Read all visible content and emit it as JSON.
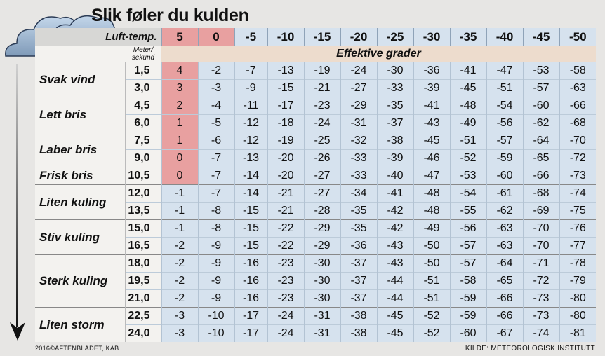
{
  "title": "Slik føler du kulden",
  "header": {
    "air_temp_label": "Luft-temp.",
    "speed_label_line1": "Meter/",
    "speed_label_line2": "sekund",
    "effective_label": "Effektive grader",
    "temperatures": [
      "5",
      "0",
      "-5",
      "-10",
      "-15",
      "-20",
      "-25",
      "-30",
      "-35",
      "-40",
      "-45",
      "-50"
    ]
  },
  "groups": [
    {
      "name": "Svak vind",
      "rows": [
        {
          "speed": "1,5",
          "values": [
            "4",
            "-2",
            "-7",
            "-13",
            "-19",
            "-24",
            "-30",
            "-36",
            "-41",
            "-47",
            "-53",
            "-58"
          ]
        },
        {
          "speed": "3,0",
          "values": [
            "3",
            "-3",
            "-9",
            "-15",
            "-21",
            "-27",
            "-33",
            "-39",
            "-45",
            "-51",
            "-57",
            "-63"
          ]
        }
      ]
    },
    {
      "name": "Lett bris",
      "rows": [
        {
          "speed": "4,5",
          "values": [
            "2",
            "-4",
            "-11",
            "-17",
            "-23",
            "-29",
            "-35",
            "-41",
            "-48",
            "-54",
            "-60",
            "-66"
          ]
        },
        {
          "speed": "6,0",
          "values": [
            "1",
            "-5",
            "-12",
            "-18",
            "-24",
            "-31",
            "-37",
            "-43",
            "-49",
            "-56",
            "-62",
            "-68"
          ]
        }
      ]
    },
    {
      "name": "Laber bris",
      "rows": [
        {
          "speed": "7,5",
          "values": [
            "1",
            "-6",
            "-12",
            "-19",
            "-25",
            "-32",
            "-38",
            "-45",
            "-51",
            "-57",
            "-64",
            "-70"
          ]
        },
        {
          "speed": "9,0",
          "values": [
            "0",
            "-7",
            "-13",
            "-20",
            "-26",
            "-33",
            "-39",
            "-46",
            "-52",
            "-59",
            "-65",
            "-72"
          ]
        }
      ]
    },
    {
      "name": "Frisk bris",
      "rows": [
        {
          "speed": "10,5",
          "values": [
            "0",
            "-7",
            "-14",
            "-20",
            "-27",
            "-33",
            "-40",
            "-47",
            "-53",
            "-60",
            "-66",
            "-73"
          ]
        }
      ]
    },
    {
      "name": "Liten kuling",
      "rows": [
        {
          "speed": "12,0",
          "values": [
            "-1",
            "-7",
            "-14",
            "-21",
            "-27",
            "-34",
            "-41",
            "-48",
            "-54",
            "-61",
            "-68",
            "-74"
          ]
        },
        {
          "speed": "13,5",
          "values": [
            "-1",
            "-8",
            "-15",
            "-21",
            "-28",
            "-35",
            "-42",
            "-48",
            "-55",
            "-62",
            "-69",
            "-75"
          ]
        }
      ]
    },
    {
      "name": "Stiv kuling",
      "rows": [
        {
          "speed": "15,0",
          "values": [
            "-1",
            "-8",
            "-15",
            "-22",
            "-29",
            "-35",
            "-42",
            "-49",
            "-56",
            "-63",
            "-70",
            "-76"
          ]
        },
        {
          "speed": "16,5",
          "values": [
            "-2",
            "-9",
            "-15",
            "-22",
            "-29",
            "-36",
            "-43",
            "-50",
            "-57",
            "-63",
            "-70",
            "-77"
          ]
        }
      ]
    },
    {
      "name": "Sterk kuling",
      "rows": [
        {
          "speed": "18,0",
          "values": [
            "-2",
            "-9",
            "-16",
            "-23",
            "-30",
            "-37",
            "-43",
            "-50",
            "-57",
            "-64",
            "-71",
            "-78"
          ]
        },
        {
          "speed": "19,5",
          "values": [
            "-2",
            "-9",
            "-16",
            "-23",
            "-30",
            "-37",
            "-44",
            "-51",
            "-58",
            "-65",
            "-72",
            "-79"
          ]
        },
        {
          "speed": "21,0",
          "values": [
            "-2",
            "-9",
            "-16",
            "-23",
            "-30",
            "-37",
            "-44",
            "-51",
            "-59",
            "-66",
            "-73",
            "-80"
          ]
        }
      ]
    },
    {
      "name": "Liten storm",
      "rows": [
        {
          "speed": "22,5",
          "values": [
            "-3",
            "-10",
            "-17",
            "-24",
            "-31",
            "-38",
            "-45",
            "-52",
            "-59",
            "-66",
            "-73",
            "-80"
          ]
        },
        {
          "speed": "24,0",
          "values": [
            "-3",
            "-10",
            "-17",
            "-24",
            "-31",
            "-38",
            "-45",
            "-52",
            "-60",
            "-67",
            "-74",
            "-81"
          ]
        }
      ]
    }
  ],
  "warm_marking": "cells above or equal to 0 in the 5° column are highlighted red",
  "colors": {
    "warm": "#e8a0a0",
    "cold": "#d6e2ee",
    "effective_band": "#eddccd"
  },
  "footer": {
    "left": "2016©AFTENBLADET, KAB",
    "right": "KILDE: METEOROLOGISK INSTITUTT"
  },
  "icons": [
    "cloud-icon",
    "down-arrow-icon"
  ]
}
